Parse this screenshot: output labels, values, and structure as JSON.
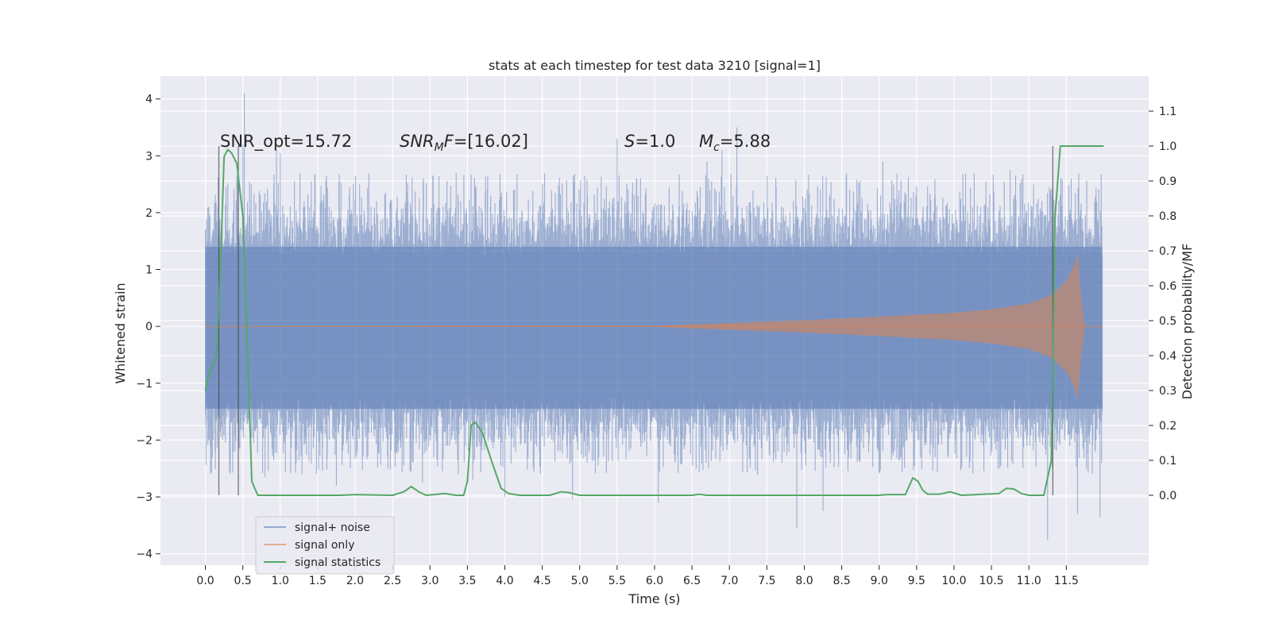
{
  "chart_data": {
    "type": "line",
    "title": "stats at each timestep for test data 3210 [signal=1]",
    "xlabel": "Time (s)",
    "ylabel": "Whitened strain",
    "y2label": "Detection probability/MF",
    "xlim": [
      -0.6,
      12.6
    ],
    "ylim": [
      -4.2,
      4.4
    ],
    "y2lim": [
      -0.2,
      1.2
    ],
    "xticks": [
      "0.0",
      "0.5",
      "1.0",
      "1.5",
      "2.0",
      "2.5",
      "3.0",
      "3.5",
      "4.0",
      "4.5",
      "5.0",
      "5.5",
      "6.0",
      "6.5",
      "7.0",
      "7.5",
      "8.0",
      "8.5",
      "9.0",
      "9.5",
      "10.0",
      "10.5",
      "11.0",
      "11.5"
    ],
    "yticks": [
      "−4",
      "−3",
      "−2",
      "−1",
      "0",
      "1",
      "2",
      "3",
      "4"
    ],
    "y2ticks": [
      "0.0",
      "0.1",
      "0.2",
      "0.3",
      "0.4",
      "0.5",
      "0.6",
      "0.7",
      "0.8",
      "0.9",
      "1.0",
      "1.1"
    ],
    "grid": true,
    "legend_position": "lower-left",
    "annotations": {
      "snr_opt": "SNR_opt=15.72",
      "snr_mf_base": "SNR",
      "snr_mf_sub": "M",
      "snr_mf_rest": "F=[16.02]",
      "s_var": "S",
      "s_val": "=1.0",
      "mc_var": "M",
      "mc_sub": "c",
      "mc_val": "=5.88"
    },
    "series": [
      {
        "name": "signal+ noise",
        "color": "#4c72b0",
        "description_values": "whitened strain noise, roughly within [-2.5, 2.5] with spikes to ~4.1 and -3.75",
        "t_range": [
          0.0,
          11.98
        ],
        "spikes": [
          [
            0.52,
            4.1
          ],
          [
            0.5,
            3.2
          ],
          [
            0.95,
            3.1
          ],
          [
            1.0,
            3.05
          ],
          [
            5.5,
            3.3
          ],
          [
            7.1,
            3.5
          ],
          [
            6.9,
            3.1
          ],
          [
            3.35,
            2.7
          ],
          [
            11.25,
            -3.75
          ],
          [
            11.95,
            -3.35
          ],
          [
            7.9,
            -3.55
          ],
          [
            8.25,
            -3.25
          ],
          [
            6.05,
            -3.1
          ],
          [
            4.0,
            -3.0
          ],
          [
            11.65,
            -3.3
          ],
          [
            1.75,
            -2.8
          ],
          [
            2.9,
            -2.75
          ],
          [
            6.7,
            2.9
          ],
          [
            9.05,
            2.9
          ],
          [
            10.75,
            2.75
          ]
        ]
      },
      {
        "name": "signal only",
        "color": "#dd8452",
        "description_values": "chirp with amplitude growing from ~0 at t=6 s to ~1.3 at t=11.65 s, then ringdown",
        "envelope": [
          [
            0.0,
            0.0
          ],
          [
            6.0,
            0.01
          ],
          [
            7.0,
            0.06
          ],
          [
            8.0,
            0.11
          ],
          [
            9.0,
            0.17
          ],
          [
            10.0,
            0.24
          ],
          [
            10.5,
            0.3
          ],
          [
            11.0,
            0.4
          ],
          [
            11.3,
            0.55
          ],
          [
            11.5,
            0.8
          ],
          [
            11.6,
            1.05
          ],
          [
            11.65,
            1.3
          ],
          [
            11.7,
            0.5
          ],
          [
            11.75,
            0.0
          ]
        ],
        "t_range": [
          0.0,
          11.98
        ]
      },
      {
        "name": "signal statistics",
        "color": "#55a868",
        "axis": "right",
        "points": [
          [
            0.0,
            0.3
          ],
          [
            0.05,
            0.35
          ],
          [
            0.15,
            0.4
          ],
          [
            0.2,
            0.65
          ],
          [
            0.25,
            0.97
          ],
          [
            0.3,
            0.99
          ],
          [
            0.35,
            0.98
          ],
          [
            0.42,
            0.95
          ],
          [
            0.5,
            0.8
          ],
          [
            0.55,
            0.5
          ],
          [
            0.62,
            0.04
          ],
          [
            0.7,
            0.0
          ],
          [
            1.8,
            0.0
          ],
          [
            2.0,
            0.002
          ],
          [
            2.5,
            0.0
          ],
          [
            2.65,
            0.01
          ],
          [
            2.75,
            0.025
          ],
          [
            2.85,
            0.01
          ],
          [
            2.95,
            0.0
          ],
          [
            3.2,
            0.005
          ],
          [
            3.35,
            0.0
          ],
          [
            3.45,
            0.0
          ],
          [
            3.5,
            0.04
          ],
          [
            3.55,
            0.2
          ],
          [
            3.6,
            0.21
          ],
          [
            3.7,
            0.18
          ],
          [
            3.82,
            0.1
          ],
          [
            3.95,
            0.02
          ],
          [
            4.05,
            0.005
          ],
          [
            4.2,
            0.0
          ],
          [
            4.6,
            0.0
          ],
          [
            4.75,
            0.01
          ],
          [
            4.85,
            0.008
          ],
          [
            5.0,
            0.0
          ],
          [
            6.5,
            0.0
          ],
          [
            6.6,
            0.003
          ],
          [
            6.7,
            0.0
          ],
          [
            9.0,
            0.0
          ],
          [
            9.1,
            0.002
          ],
          [
            9.35,
            0.002
          ],
          [
            9.45,
            0.05
          ],
          [
            9.52,
            0.04
          ],
          [
            9.58,
            0.015
          ],
          [
            9.65,
            0.003
          ],
          [
            9.8,
            0.003
          ],
          [
            9.95,
            0.01
          ],
          [
            10.1,
            0.0
          ],
          [
            10.6,
            0.005
          ],
          [
            10.7,
            0.02
          ],
          [
            10.8,
            0.018
          ],
          [
            10.9,
            0.005
          ],
          [
            11.0,
            0.0
          ],
          [
            11.2,
            0.0
          ],
          [
            11.3,
            0.1
          ],
          [
            11.35,
            0.8
          ],
          [
            11.42,
            1.0
          ],
          [
            11.6,
            1.0
          ],
          [
            12.0,
            1.0
          ]
        ]
      }
    ],
    "vlines": [
      0.18,
      0.44,
      11.32
    ]
  }
}
